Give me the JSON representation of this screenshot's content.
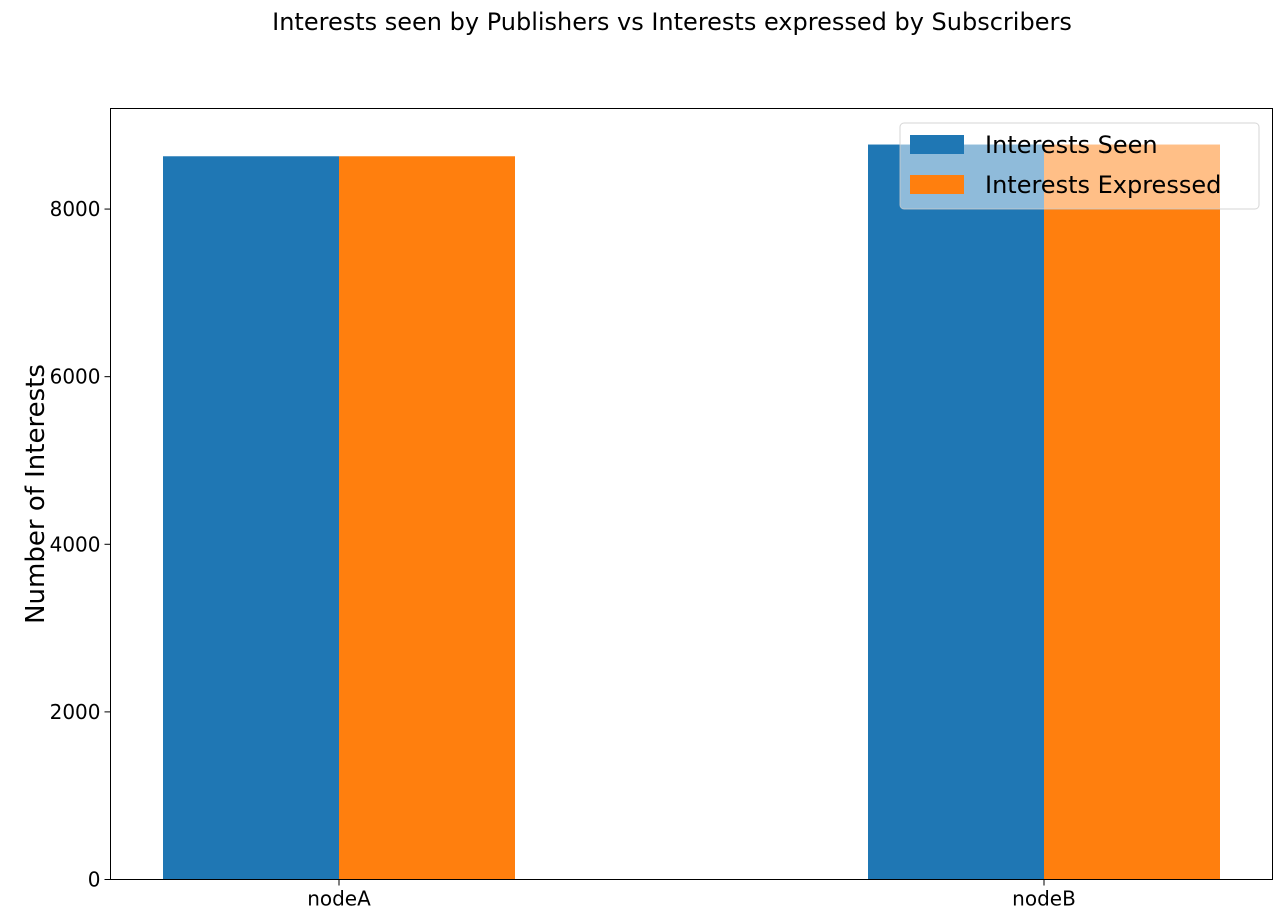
{
  "chart_data": {
    "type": "bar",
    "title": "Interests seen by Publishers vs Interests expressed by Subscribers",
    "xlabel": "",
    "ylabel": "Number of Interests",
    "categories": [
      "nodeA",
      "nodeB"
    ],
    "series": [
      {
        "name": "Interests Seen",
        "color": "#1f77b4",
        "values": [
          8630,
          8770
        ]
      },
      {
        "name": "Interests Expressed",
        "color": "#ff7f0e",
        "values": [
          8630,
          8770
        ]
      }
    ],
    "ylim": [
      0,
      9200
    ],
    "yticks": [
      0,
      2000,
      4000,
      6000,
      8000
    ],
    "ytick_labels": [
      "0",
      "2000",
      "4000",
      "6000",
      "8000"
    ],
    "grid": false,
    "legend_position": "top-right"
  }
}
